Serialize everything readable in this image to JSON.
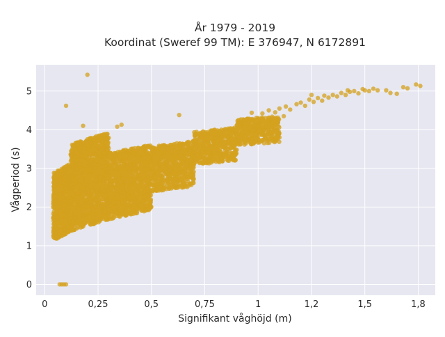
{
  "chart_data": {
    "type": "scatter",
    "title_line1": "År 1979 - 2019",
    "title_line2": "Koordinat (Sweref 99 TM): E 376947, N 6172891",
    "xlabel": "Signifikant våghöjd (m)",
    "ylabel": "Vågperiod (s)",
    "xlim": [
      -0.04,
      1.83
    ],
    "ylim": [
      -0.28,
      5.68
    ],
    "grid": true,
    "legend": "none",
    "colors": {
      "points": "#d4a21f",
      "plot_bg": "#e6e7f0",
      "grid": "#ffffff"
    },
    "x_ticks": [
      0,
      0.25,
      0.5,
      0.75,
      1,
      1.25,
      1.5,
      1.75
    ],
    "x_tick_labels": [
      "0",
      "0,25",
      "0,5",
      "0,75",
      "1",
      "1,2",
      "1,5",
      "1,8"
    ],
    "y_ticks": [
      0,
      1,
      2,
      3,
      4,
      5
    ],
    "y_tick_labels": [
      "0",
      "1",
      "2",
      "3",
      "4",
      "5"
    ],
    "outliers": [
      {
        "x": 0.2,
        "y": 5.42
      },
      {
        "x": 0.1,
        "y": 4.62
      },
      {
        "x": 0.63,
        "y": 4.38
      },
      {
        "x": 0.18,
        "y": 4.1
      },
      {
        "x": 0.36,
        "y": 4.13
      },
      {
        "x": 0.34,
        "y": 4.08
      },
      {
        "x": 0.07,
        "y": 0.0
      },
      {
        "x": 0.08,
        "y": 0.0
      },
      {
        "x": 0.09,
        "y": 0.0
      },
      {
        "x": 0.1,
        "y": 0.0
      }
    ],
    "upper_tail": [
      {
        "x": 1.02,
        "y": 4.42
      },
      {
        "x": 1.05,
        "y": 4.5
      },
      {
        "x": 1.08,
        "y": 4.45
      },
      {
        "x": 1.1,
        "y": 4.55
      },
      {
        "x": 1.13,
        "y": 4.6
      },
      {
        "x": 1.15,
        "y": 4.52
      },
      {
        "x": 1.18,
        "y": 4.66
      },
      {
        "x": 1.2,
        "y": 4.7
      },
      {
        "x": 1.22,
        "y": 4.62
      },
      {
        "x": 1.24,
        "y": 4.78
      },
      {
        "x": 1.26,
        "y": 4.72
      },
      {
        "x": 1.28,
        "y": 4.82
      },
      {
        "x": 1.3,
        "y": 4.75
      },
      {
        "x": 1.31,
        "y": 4.88
      },
      {
        "x": 1.33,
        "y": 4.83
      },
      {
        "x": 1.35,
        "y": 4.9
      },
      {
        "x": 1.37,
        "y": 4.86
      },
      {
        "x": 1.39,
        "y": 4.95
      },
      {
        "x": 1.41,
        "y": 4.9
      },
      {
        "x": 1.43,
        "y": 4.98
      },
      {
        "x": 1.45,
        "y": 5.0
      },
      {
        "x": 1.47,
        "y": 4.94
      },
      {
        "x": 1.49,
        "y": 5.05
      },
      {
        "x": 1.5,
        "y": 5.02
      },
      {
        "x": 1.52,
        "y": 5.0
      },
      {
        "x": 1.54,
        "y": 5.06
      },
      {
        "x": 1.56,
        "y": 5.02
      },
      {
        "x": 1.6,
        "y": 5.02
      },
      {
        "x": 1.62,
        "y": 4.95
      },
      {
        "x": 1.65,
        "y": 4.93
      },
      {
        "x": 1.68,
        "y": 5.1
      },
      {
        "x": 1.7,
        "y": 5.07
      },
      {
        "x": 1.74,
        "y": 5.17
      },
      {
        "x": 1.76,
        "y": 5.13
      },
      {
        "x": 1.42,
        "y": 5.02
      },
      {
        "x": 1.25,
        "y": 4.9
      },
      {
        "x": 1.12,
        "y": 4.35
      },
      {
        "x": 1.0,
        "y": 4.3
      },
      {
        "x": 0.97,
        "y": 4.44
      },
      {
        "x": 0.95,
        "y": 4.2
      }
    ],
    "bulk_regions": [
      {
        "x_range": [
          0.04,
          0.12
        ],
        "y_range": [
          1.15,
          3.1
        ],
        "share": 0.14
      },
      {
        "x_range": [
          0.12,
          0.3
        ],
        "y_range": [
          1.4,
          3.9
        ],
        "share": 0.32
      },
      {
        "x_range": [
          0.3,
          0.5
        ],
        "y_range": [
          1.7,
          3.6
        ],
        "share": 0.22
      },
      {
        "x_range": [
          0.5,
          0.7
        ],
        "y_range": [
          2.4,
          3.7
        ],
        "share": 0.14
      },
      {
        "x_range": [
          0.7,
          0.9
        ],
        "y_range": [
          3.1,
          4.05
        ],
        "share": 0.1
      },
      {
        "x_range": [
          0.9,
          1.1
        ],
        "y_range": [
          3.6,
          4.35
        ],
        "share": 0.08
      }
    ]
  }
}
